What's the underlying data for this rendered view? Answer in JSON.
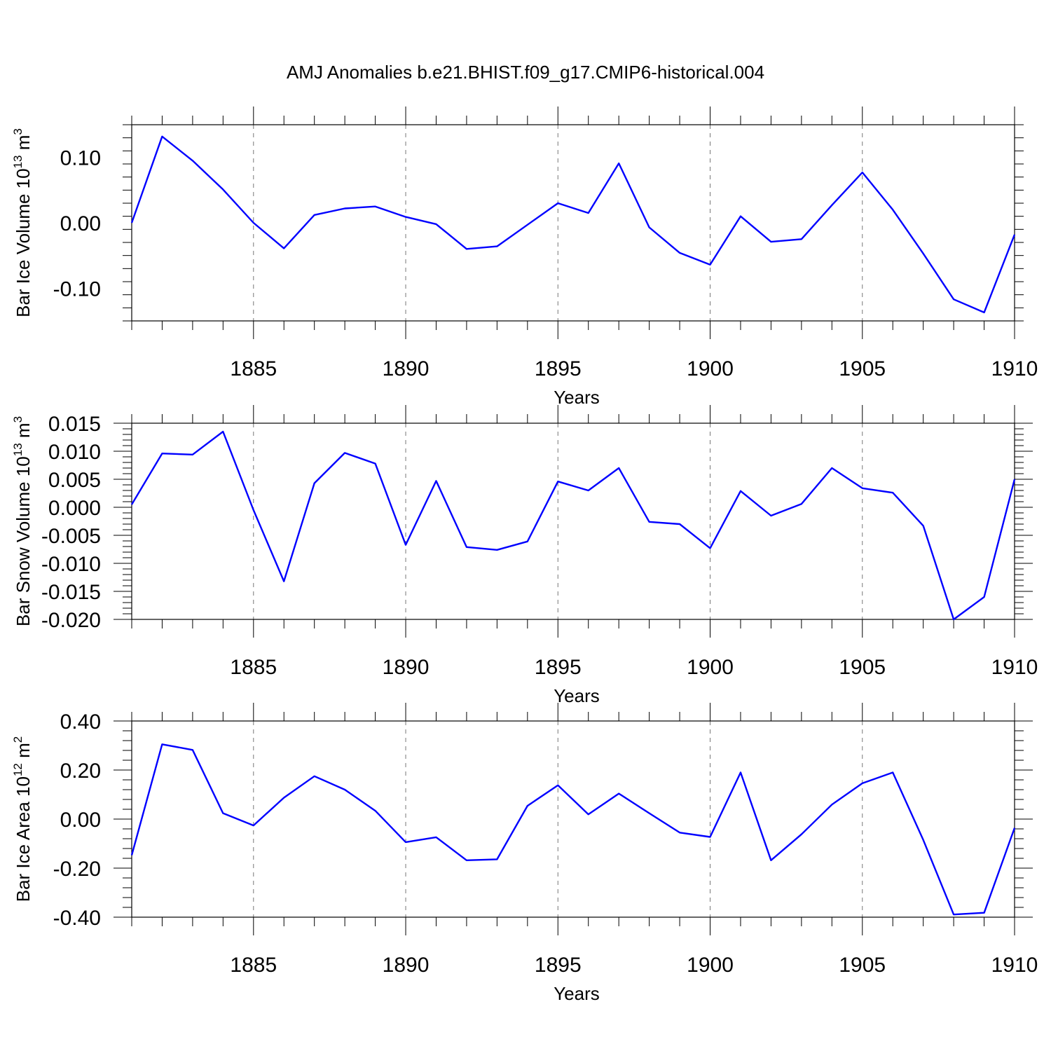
{
  "title": "AMJ Anomalies b.e21.BHIST.f09_g17.CMIP6-historical.004",
  "line_color": "#0000ff",
  "chart_data": [
    {
      "type": "line",
      "xlabel": "Years",
      "ylabel_text": "Bar Ice Volume 10",
      "ylabel_exp": "13",
      "ylabel_unit": " m",
      "ylabel_unit_exp": "3",
      "xlim": [
        1881,
        1910
      ],
      "ylim": [
        -0.15,
        0.15
      ],
      "x_ticks": [
        "1885",
        "1890",
        "1895",
        "1900",
        "1905",
        "1910"
      ],
      "y_ticks": [
        "0.10",
        "0.00",
        "-0.10"
      ],
      "y_tick_values": [
        0.1,
        0.0,
        -0.1
      ],
      "x": [
        1881,
        1882,
        1883,
        1884,
        1885,
        1886,
        1887,
        1888,
        1889,
        1890,
        1891,
        1892,
        1893,
        1894,
        1895,
        1896,
        1897,
        1898,
        1899,
        1900,
        1901,
        1902,
        1903,
        1904,
        1905,
        1906,
        1907,
        1908,
        1909,
        1910
      ],
      "values": [
        0.0,
        0.132,
        0.095,
        0.051,
        0.0,
        -0.039,
        0.012,
        0.022,
        0.025,
        0.009,
        -0.002,
        -0.04,
        -0.036,
        -0.003,
        0.03,
        0.015,
        0.091,
        -0.007,
        -0.046,
        -0.064,
        0.01,
        -0.029,
        -0.025,
        0.027,
        0.077,
        0.02,
        -0.047,
        -0.117,
        -0.137,
        -0.018
      ]
    },
    {
      "type": "line",
      "xlabel": "Years",
      "ylabel_text": "Bar Snow Volume 10",
      "ylabel_exp": "13",
      "ylabel_unit": " m",
      "ylabel_unit_exp": "3",
      "xlim": [
        1881,
        1910
      ],
      "ylim": [
        -0.02,
        0.015
      ],
      "x_ticks": [
        "1885",
        "1890",
        "1895",
        "1900",
        "1905",
        "1910"
      ],
      "y_ticks": [
        "0.015",
        "0.010",
        "0.005",
        "0.000",
        "-0.005",
        "-0.010",
        "-0.015",
        "-0.020"
      ],
      "y_tick_values": [
        0.015,
        0.01,
        0.005,
        0.0,
        -0.005,
        -0.01,
        -0.015,
        -0.02
      ],
      "x": [
        1881,
        1882,
        1883,
        1884,
        1885,
        1886,
        1887,
        1888,
        1889,
        1890,
        1891,
        1892,
        1893,
        1894,
        1895,
        1896,
        1897,
        1898,
        1899,
        1900,
        1901,
        1902,
        1903,
        1904,
        1905,
        1906,
        1907,
        1908,
        1909,
        1910
      ],
      "values": [
        0.0005,
        0.0096,
        0.0094,
        0.0135,
        -0.0005,
        -0.0132,
        0.0043,
        0.0097,
        0.0078,
        -0.0067,
        0.0047,
        -0.0071,
        -0.0076,
        -0.0061,
        0.0046,
        0.003,
        0.007,
        -0.0026,
        -0.003,
        -0.0073,
        0.0029,
        -0.0015,
        0.0006,
        0.007,
        0.0034,
        0.0026,
        -0.0033,
        -0.02,
        -0.016,
        0.005
      ]
    },
    {
      "type": "line",
      "xlabel": "Years",
      "ylabel_text": "Bar Ice Area 10",
      "ylabel_exp": "12",
      "ylabel_unit": " m",
      "ylabel_unit_exp": "2",
      "xlim": [
        1881,
        1910
      ],
      "ylim": [
        -0.4,
        0.4
      ],
      "x_ticks": [
        "1885",
        "1890",
        "1895",
        "1900",
        "1905",
        "1910"
      ],
      "y_ticks": [
        "0.40",
        "0.20",
        "0.00",
        "-0.20",
        "-0.40"
      ],
      "y_tick_values": [
        0.4,
        0.2,
        0.0,
        -0.2,
        -0.4
      ],
      "x": [
        1881,
        1882,
        1883,
        1884,
        1885,
        1886,
        1887,
        1888,
        1889,
        1890,
        1891,
        1892,
        1893,
        1894,
        1895,
        1896,
        1897,
        1898,
        1899,
        1900,
        1901,
        1902,
        1903,
        1904,
        1905,
        1906,
        1907,
        1908,
        1909,
        1910
      ],
      "values": [
        -0.147,
        0.305,
        0.282,
        0.024,
        -0.026,
        0.087,
        0.175,
        0.12,
        0.034,
        -0.094,
        -0.074,
        -0.168,
        -0.164,
        0.054,
        0.138,
        0.019,
        0.104,
        0.024,
        -0.055,
        -0.073,
        0.19,
        -0.168,
        -0.062,
        0.059,
        0.146,
        0.19,
        -0.085,
        -0.389,
        -0.382,
        -0.036
      ]
    }
  ]
}
